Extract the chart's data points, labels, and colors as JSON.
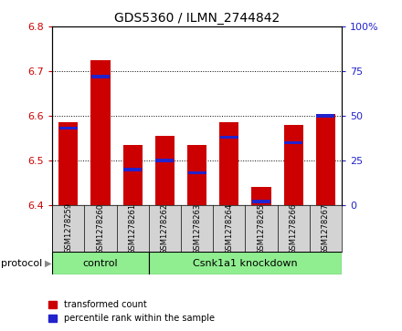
{
  "title": "GDS5360 / ILMN_2744842",
  "samples": [
    "GSM1278259",
    "GSM1278260",
    "GSM1278261",
    "GSM1278262",
    "GSM1278263",
    "GSM1278264",
    "GSM1278265",
    "GSM1278266",
    "GSM1278267"
  ],
  "red_values": [
    6.585,
    6.725,
    6.535,
    6.555,
    6.535,
    6.585,
    6.44,
    6.58,
    6.605
  ],
  "blue_values_pct": [
    43,
    72,
    20,
    25,
    18,
    38,
    2,
    35,
    50
  ],
  "ylim_left": [
    6.4,
    6.8
  ],
  "ylim_right": [
    0,
    100
  ],
  "yticks_left": [
    6.4,
    6.5,
    6.6,
    6.7,
    6.8
  ],
  "yticks_right": [
    0,
    25,
    50,
    75,
    100
  ],
  "red_color": "#CC0000",
  "blue_color": "#2222CC",
  "bar_width": 0.6,
  "tick_color_left": "#CC0000",
  "tick_color_right": "#2222CC",
  "group_bg_color": "#d3d3d3",
  "group_protocol_color": "#90EE90",
  "control_count": 3,
  "n_samples": 9,
  "figsize": [
    4.4,
    3.63
  ],
  "dpi": 100
}
